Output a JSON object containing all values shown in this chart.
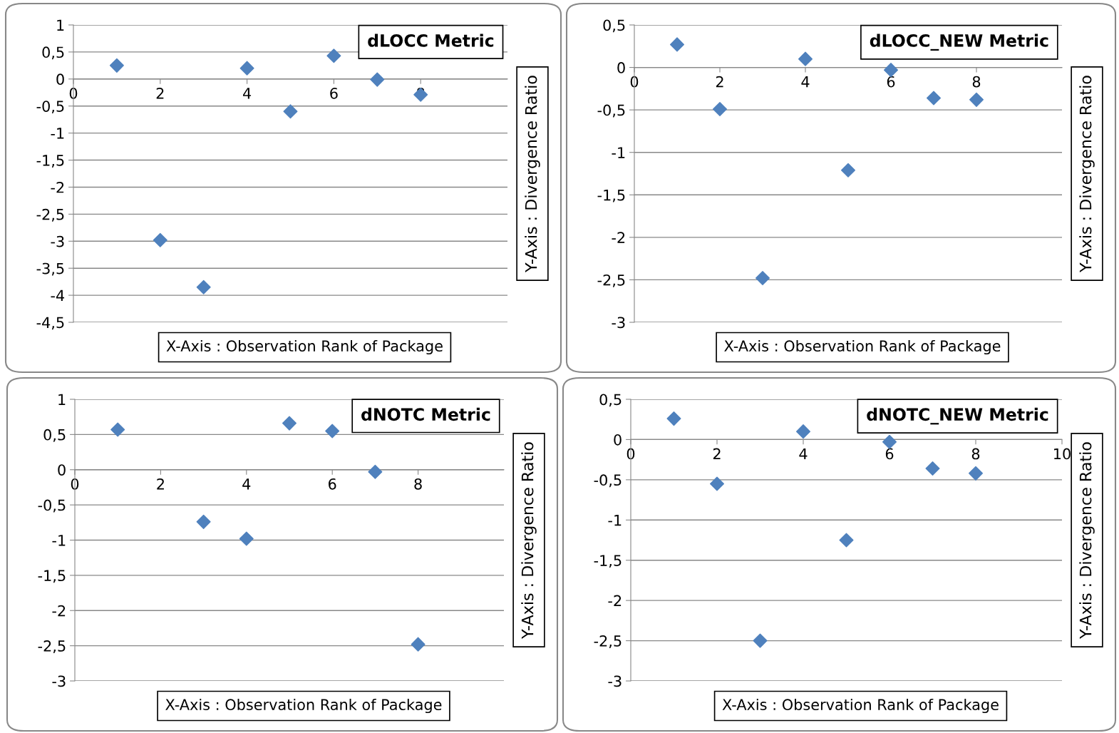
{
  "chart_data": [
    {
      "type": "scatter",
      "title": "dLOCC Metric",
      "xlabel": "X-Axis : Observation Rank of Package",
      "ylabel": "Y-Axis : Divergence Ratio",
      "x": [
        1,
        2,
        3,
        4,
        5,
        6,
        7,
        8
      ],
      "values": [
        0.25,
        -2.98,
        -3.85,
        0.2,
        -0.6,
        0.43,
        -0.01,
        -0.29
      ],
      "color": "#4f81bd",
      "marker": "diamond",
      "grid": "y",
      "xlim": [
        0,
        10
      ],
      "xticks": [
        0,
        2,
        4,
        6,
        8
      ],
      "ylim": [
        -4.5,
        1
      ],
      "yticks": [
        {
          "value": 1,
          "label": "1"
        },
        {
          "value": 0.5,
          "label": "0,5"
        },
        {
          "value": 0,
          "label": "0"
        },
        {
          "value": -0.5,
          "label": "-0,5"
        },
        {
          "value": -1,
          "label": "-1"
        },
        {
          "value": -1.5,
          "label": "-1,5"
        },
        {
          "value": -2,
          "label": "-2"
        },
        {
          "value": -2.5,
          "label": "-2,5"
        },
        {
          "value": -3,
          "label": "-3"
        },
        {
          "value": -3.5,
          "label": "-3,5"
        },
        {
          "value": -4,
          "label": "-4"
        },
        {
          "value": -4.5,
          "label": "-4,5"
        }
      ]
    },
    {
      "type": "scatter",
      "title": "dLOCC_NEW Metric",
      "xlabel": "X-Axis : Observation Rank of Package",
      "ylabel": "Y-Axis : Divergence Ratio",
      "x": [
        1,
        2,
        3,
        4,
        5,
        6,
        7,
        8
      ],
      "values": [
        0.27,
        -0.49,
        -2.48,
        0.1,
        -1.21,
        -0.03,
        -0.36,
        -0.38
      ],
      "color": "#4f81bd",
      "marker": "diamond",
      "grid": "y",
      "xlim": [
        0,
        10
      ],
      "xticks": [
        0,
        2,
        4,
        6,
        8
      ],
      "ylim": [
        -3,
        0.5
      ],
      "yticks": [
        {
          "value": 0.5,
          "label": "0,5"
        },
        {
          "value": 0,
          "label": "0"
        },
        {
          "value": -0.5,
          "label": "-0,5"
        },
        {
          "value": -1,
          "label": "-1"
        },
        {
          "value": -1.5,
          "label": "-1,5"
        },
        {
          "value": -2,
          "label": "-2"
        },
        {
          "value": -2.5,
          "label": "-2,5"
        },
        {
          "value": -3,
          "label": "-3"
        }
      ]
    },
    {
      "type": "scatter",
      "title": "dNOTC Metric",
      "xlabel": "X-Axis : Observation Rank of Package",
      "ylabel": "Y-Axis : Divergence Ratio",
      "x": [
        1,
        2,
        3,
        4,
        5,
        6,
        7,
        8
      ],
      "values": [
        0.57,
        null,
        -0.74,
        -0.98,
        0.66,
        0.55,
        -0.03,
        -2.48
      ],
      "color": "#4f81bd",
      "marker": "diamond",
      "grid": "y",
      "xlim": [
        0,
        10
      ],
      "xticks": [
        0,
        2,
        4,
        6,
        8
      ],
      "ylim": [
        -3,
        1
      ],
      "yticks": [
        {
          "value": 1,
          "label": "1"
        },
        {
          "value": 0.5,
          "label": "0,5"
        },
        {
          "value": 0,
          "label": "0"
        },
        {
          "value": -0.5,
          "label": "-0,5"
        },
        {
          "value": -1,
          "label": "-1"
        },
        {
          "value": -1.5,
          "label": "-1,5"
        },
        {
          "value": -2,
          "label": "-2"
        },
        {
          "value": -2.5,
          "label": "-2,5"
        },
        {
          "value": -3,
          "label": "-3"
        }
      ]
    },
    {
      "type": "scatter",
      "title": "dNOTC_NEW Metric",
      "xlabel": "X-Axis : Observation Rank of Package",
      "ylabel": "Y-Axis : Divergence Ratio",
      "x": [
        1,
        2,
        3,
        4,
        5,
        6,
        7,
        8
      ],
      "values": [
        0.26,
        -0.55,
        -2.5,
        0.1,
        -1.25,
        -0.03,
        -0.36,
        -0.42
      ],
      "color": "#4f81bd",
      "marker": "diamond",
      "grid": "y",
      "xlim": [
        0,
        10
      ],
      "xticks": [
        0,
        2,
        4,
        6,
        8,
        10
      ],
      "ylim": [
        -3,
        0.5
      ],
      "yticks": [
        {
          "value": 0.5,
          "label": "0,5"
        },
        {
          "value": 0,
          "label": "0"
        },
        {
          "value": -0.5,
          "label": "-0,5"
        },
        {
          "value": -1,
          "label": "-1"
        },
        {
          "value": -1.5,
          "label": "-1,5"
        },
        {
          "value": -2,
          "label": "-2"
        },
        {
          "value": -2.5,
          "label": "-2,5"
        },
        {
          "value": -3,
          "label": "-3"
        }
      ]
    }
  ]
}
